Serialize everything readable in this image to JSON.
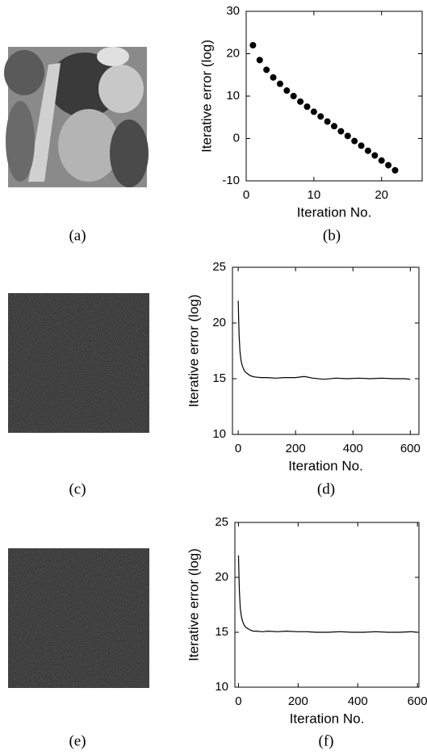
{
  "panels": {
    "captions": [
      "(a)",
      "(b)",
      "(c)",
      "(d)",
      "(e)",
      "(f)"
    ]
  },
  "chart_data": [
    {
      "type": "scatter",
      "xlabel": "Iteration No.",
      "ylabel": "Iterative error (log)",
      "x": [
        1,
        2,
        3,
        4,
        5,
        6,
        7,
        8,
        9,
        10,
        11,
        12,
        13,
        14,
        15,
        16,
        17,
        18,
        19,
        20,
        21,
        22
      ],
      "values": [
        22,
        18.5,
        16.2,
        14.4,
        12.9,
        11.3,
        10,
        8.7,
        7.5,
        6.3,
        5.2,
        4,
        2.9,
        1.7,
        0.6,
        -0.6,
        -1.7,
        -2.9,
        -4,
        -5.2,
        -6.3,
        -7.5
      ],
      "color": "#000000",
      "xlim": [
        0,
        26
      ],
      "ylim": [
        -10,
        30
      ],
      "xticks": [
        0,
        10,
        20
      ],
      "yticks": [
        -10,
        0,
        10,
        20,
        30
      ]
    },
    {
      "type": "line",
      "xlabel": "Iteration No.",
      "ylabel": "Iterative error (log)",
      "x": [
        0,
        3,
        6,
        10,
        15,
        20,
        25,
        30,
        40,
        50,
        60,
        80,
        100,
        130,
        160,
        200,
        230,
        260,
        300,
        340,
        380,
        420,
        460,
        500,
        540,
        580,
        600
      ],
      "values": [
        22,
        19,
        17.5,
        16.6,
        16.1,
        15.8,
        15.6,
        15.5,
        15.3,
        15.2,
        15.15,
        15.1,
        15.1,
        15.05,
        15.1,
        15.1,
        15.2,
        15.05,
        14.95,
        15.05,
        15,
        15.05,
        15,
        15.05,
        15,
        15,
        14.95
      ],
      "color": "#000000",
      "xlim": [
        -20,
        630
      ],
      "ylim": [
        10,
        25
      ],
      "xticks": [
        0,
        200,
        400,
        600
      ],
      "yticks": [
        10,
        15,
        20,
        25
      ]
    },
    {
      "type": "line",
      "xlabel": "Iteration No.",
      "ylabel": "Iterative error (log)",
      "x": [
        0,
        3,
        6,
        10,
        15,
        20,
        25,
        30,
        40,
        50,
        60,
        80,
        100,
        130,
        160,
        200,
        230,
        260,
        300,
        340,
        380,
        420,
        460,
        500,
        540,
        580,
        600
      ],
      "values": [
        22,
        18.8,
        17.2,
        16.4,
        15.9,
        15.6,
        15.45,
        15.35,
        15.2,
        15.1,
        15.1,
        15.05,
        15.1,
        15.05,
        15.1,
        15.05,
        15.05,
        15,
        15,
        15.05,
        15,
        15,
        15.05,
        15,
        15,
        15.05,
        15
      ],
      "color": "#000000",
      "xlim": [
        -12,
        605
      ],
      "ylim": [
        10,
        25
      ],
      "xticks": [
        0,
        200,
        400,
        600
      ],
      "yticks": [
        10,
        15,
        20,
        25
      ]
    }
  ]
}
